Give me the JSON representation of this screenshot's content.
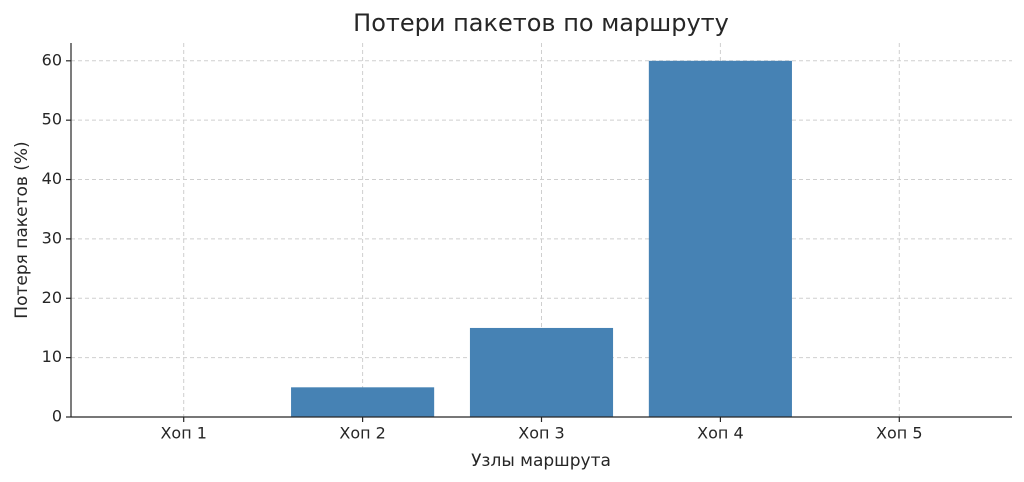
{
  "chart_data": {
    "type": "bar",
    "title": "Потери пакетов по маршруту",
    "x_label": "Узлы маршрута",
    "y_label": "Потеря пакетов (%)",
    "categories": [
      "Хоп 1",
      "Хоп 2",
      "Хоп 3",
      "Хоп 4",
      "Хоп 5"
    ],
    "values": [
      0,
      5,
      15,
      60,
      0
    ],
    "color": "#4682b4",
    "ylim": [
      0,
      63
    ],
    "yticks": [
      0,
      10,
      20,
      30,
      40,
      50,
      60
    ],
    "grid": true
  }
}
